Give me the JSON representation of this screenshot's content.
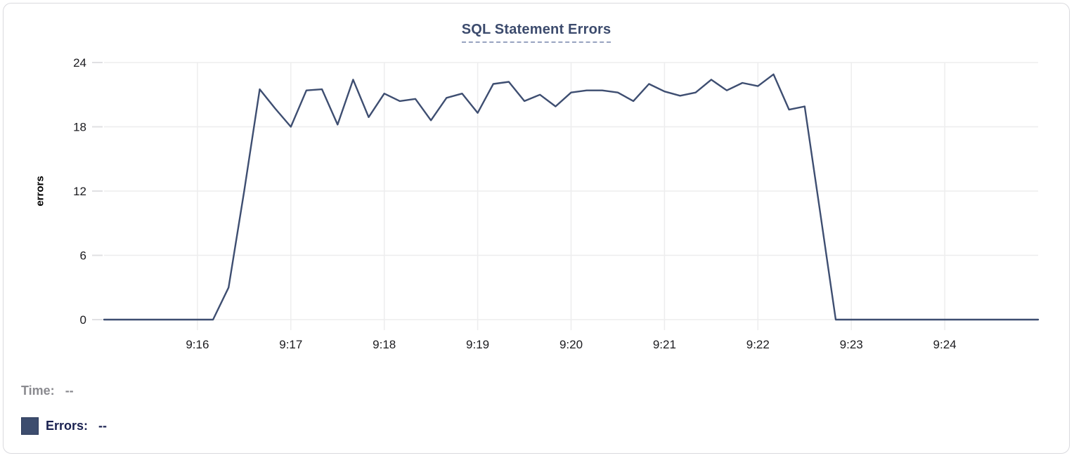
{
  "header": {
    "title": "SQL Statement Errors",
    "title_color": "#3c4b6d",
    "underline_color": "#98a3c0"
  },
  "tooltip_readout": {
    "time_label": "Time:",
    "time_value": "--",
    "errors_label": "Errors:",
    "errors_value": "--",
    "time_color": "#8a8a8f",
    "errors_color": "#1a2150",
    "swatch_color": "#3d4d6e"
  },
  "chart_data": {
    "type": "line",
    "title": "SQL Statement Errors",
    "xlabel": "",
    "ylabel": "errors",
    "x_start": "9:15:00",
    "x_end": "9:25:00",
    "x_tick_labels": [
      "9:16",
      "9:17",
      "9:18",
      "9:19",
      "9:20",
      "9:21",
      "9:22",
      "9:23",
      "9:24"
    ],
    "y_ticks": [
      0,
      6,
      12,
      18,
      24
    ],
    "ylim": [
      0,
      24
    ],
    "grid": true,
    "legend_position": "none",
    "line_color": "#3e4e71",
    "grid_color": "#ededee",
    "tick_color": "#e0e0e3",
    "tick_label_color": "#1b1b1f",
    "series": [
      {
        "name": "Errors",
        "interval_seconds": 10,
        "times": [
          "9:15:00",
          "9:15:10",
          "9:15:20",
          "9:15:30",
          "9:15:40",
          "9:15:50",
          "9:16:00",
          "9:16:10",
          "9:16:20",
          "9:16:30",
          "9:16:40",
          "9:16:50",
          "9:17:00",
          "9:17:10",
          "9:17:20",
          "9:17:30",
          "9:17:40",
          "9:17:50",
          "9:18:00",
          "9:18:10",
          "9:18:20",
          "9:18:30",
          "9:18:40",
          "9:18:50",
          "9:19:00",
          "9:19:10",
          "9:19:20",
          "9:19:30",
          "9:19:40",
          "9:19:50",
          "9:20:00",
          "9:20:10",
          "9:20:20",
          "9:20:30",
          "9:20:40",
          "9:20:50",
          "9:21:00",
          "9:21:10",
          "9:21:20",
          "9:21:30",
          "9:21:40",
          "9:21:50",
          "9:22:00",
          "9:22:10",
          "9:22:20",
          "9:22:30",
          "9:22:40",
          "9:22:50",
          "9:23:00",
          "9:23:10",
          "9:23:20",
          "9:23:30",
          "9:23:40",
          "9:23:50",
          "9:24:00",
          "9:24:10",
          "9:24:20",
          "9:24:30",
          "9:24:40",
          "9:24:50",
          "9:25:00"
        ],
        "values": [
          0,
          0,
          0,
          0,
          0,
          0,
          0,
          0,
          3,
          12,
          21.5,
          19.7,
          18,
          21.4,
          21.5,
          18.2,
          22.4,
          18.9,
          21.1,
          20.4,
          20.6,
          18.6,
          20.7,
          21.1,
          19.3,
          22,
          22.2,
          20.4,
          21,
          19.9,
          21.2,
          21.4,
          21.4,
          21.2,
          20.4,
          22,
          21.3,
          20.9,
          21.2,
          22.4,
          21.4,
          22.1,
          21.8,
          22.9,
          19.6,
          19.9,
          10,
          0,
          0,
          0,
          0,
          0,
          0,
          0,
          0,
          0,
          0,
          0,
          0,
          0,
          0
        ]
      }
    ]
  }
}
